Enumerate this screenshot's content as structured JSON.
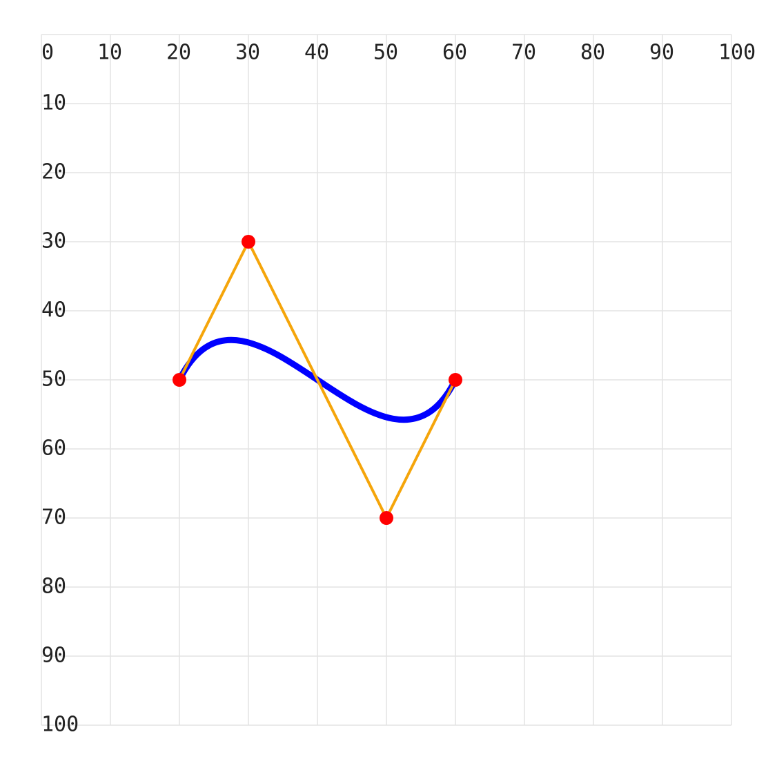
{
  "chart_data": {
    "type": "bezier",
    "x": [
      20,
      30,
      50,
      60
    ],
    "values": [
      50,
      30,
      70,
      50
    ],
    "curve_color": "#0000ff",
    "polygon_color": "#f5a50a",
    "point_color": "#ff0000",
    "xlim": [
      0,
      100
    ],
    "xticks": [
      0,
      10,
      20,
      30,
      40,
      50,
      60,
      70,
      80,
      90,
      100
    ],
    "ylim": [
      0,
      100
    ],
    "yticks": [
      10,
      20,
      30,
      40,
      50,
      60,
      70,
      80,
      90,
      100
    ],
    "grid": true
  }
}
